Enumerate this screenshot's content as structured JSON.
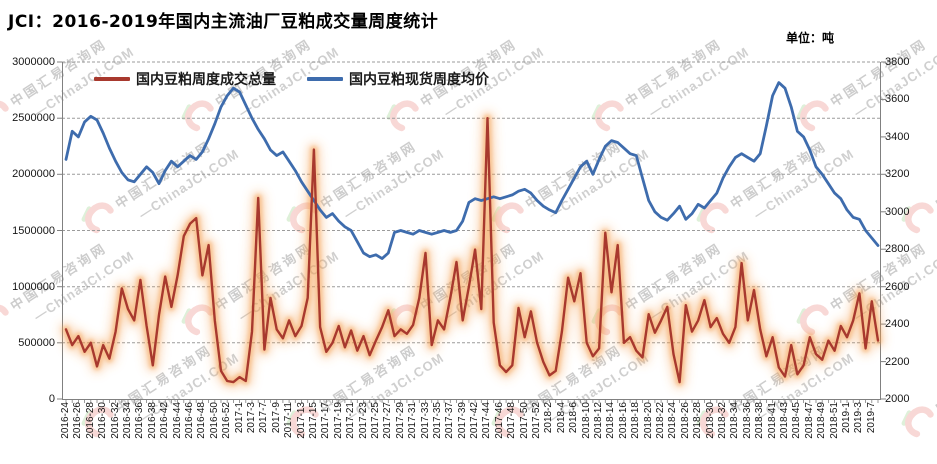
{
  "header": {
    "title": "JCI：2016-2019年国内主流油厂豆粕成交量周度统计",
    "unit": "单位：吨"
  },
  "legend": [
    {
      "label": "国内豆粕周度成交总量",
      "color": "#a8392e"
    },
    {
      "label": "国内豆粕现货周度均价",
      "color": "#3e6cad"
    }
  ],
  "watermark": {
    "line1": "中国汇易咨询网",
    "line2": "—ChinaJCI.COM",
    "logo_pink": "#f3b3ae",
    "logo_green": "#bfe3b4"
  },
  "chart_data": {
    "type": "line",
    "title": "JCI：2016-2019年国内主流油厂豆粕成交量周度统计",
    "unit_label": "单位：吨",
    "grid": "horizontal-dashed",
    "legend_position": "top-inside",
    "points_per_label": 2,
    "left_axis": {
      "min": 0,
      "max": 3000000,
      "step": 500000,
      "tick_labels": [
        "0",
        "500000",
        "1000000",
        "1500000",
        "2000000",
        "2500000",
        "3000000"
      ]
    },
    "right_axis": {
      "min": 2000,
      "max": 3800,
      "step": 200,
      "tick_labels": [
        "2000",
        "2200",
        "2400",
        "2600",
        "2800",
        "3000",
        "3200",
        "3400",
        "3600",
        "3800"
      ]
    },
    "x_tick_labels": [
      "2016-24",
      "2016-26",
      "2016-28",
      "2016-30",
      "2016-32",
      "2016-34",
      "2016-36",
      "2016-38",
      "2016-42",
      "2016-44",
      "2016-46",
      "2016-48",
      "2016-50",
      "2016-52",
      "2017-1",
      "2017-3",
      "2017-7",
      "2017-9",
      "2017-11",
      "2017-13",
      "2017-15",
      "2017-17",
      "2017-19",
      "2017-21",
      "2017-23",
      "2017-25",
      "2017-27",
      "2017-29",
      "2017-31",
      "2017-33",
      "2017-35",
      "2017-37",
      "2017-39",
      "2017-42",
      "2017-44",
      "2017-46",
      "2017-48",
      "2017-50",
      "2017-52",
      "2018-2",
      "2018-4",
      "2018-6",
      "2018-10",
      "2018-12",
      "2018-14",
      "2018-16",
      "2018-18",
      "2018-20",
      "2018-22",
      "2018-24",
      "2018-26",
      "2018-28",
      "2018-30",
      "2018-32",
      "2018-34",
      "2018-36",
      "2018-38",
      "2018-41",
      "2018-43",
      "2018-45",
      "2018-47",
      "2018-49",
      "2018-51",
      "2019-1",
      "2019-3",
      "2019-7"
    ],
    "series": [
      {
        "name": "国内豆粕周度成交总量",
        "axis": "left",
        "color": "#a8392e",
        "glow_color": "#f49a48",
        "values": [
          620000,
          480000,
          560000,
          420000,
          500000,
          290000,
          480000,
          360000,
          600000,
          985000,
          800000,
          700000,
          1060000,
          650000,
          300000,
          750000,
          1090000,
          820000,
          1100000,
          1450000,
          1560000,
          1610000,
          1100000,
          1370000,
          700000,
          250000,
          160000,
          150000,
          195000,
          160000,
          600000,
          1790000,
          440000,
          900000,
          620000,
          540000,
          700000,
          560000,
          650000,
          900000,
          2220000,
          640000,
          420000,
          500000,
          650000,
          460000,
          610000,
          430000,
          560000,
          390000,
          520000,
          640000,
          790000,
          560000,
          620000,
          580000,
          660000,
          900000,
          1300000,
          480000,
          700000,
          620000,
          900000,
          1220000,
          700000,
          1000000,
          1330000,
          800000,
          2500000,
          680000,
          300000,
          240000,
          300000,
          810000,
          550000,
          780000,
          500000,
          330000,
          210000,
          250000,
          600000,
          1080000,
          870000,
          1120000,
          500000,
          380000,
          450000,
          1480000,
          950000,
          1370000,
          500000,
          550000,
          430000,
          370000,
          755000,
          590000,
          700000,
          820000,
          400000,
          150000,
          835000,
          600000,
          700000,
          880000,
          640000,
          720000,
          580000,
          500000,
          640000,
          1210000,
          700000,
          970000,
          620000,
          380000,
          550000,
          280000,
          200000,
          480000,
          220000,
          300000,
          550000,
          400000,
          350000,
          520000,
          430000,
          650000,
          550000,
          700000,
          940000,
          450000,
          870000,
          520000
        ]
      },
      {
        "name": "国内豆粕现货周度均价",
        "axis": "right",
        "color": "#3e6cad",
        "values": [
          3280,
          3430,
          3400,
          3480,
          3510,
          3490,
          3420,
          3340,
          3270,
          3210,
          3170,
          3160,
          3200,
          3240,
          3210,
          3150,
          3220,
          3270,
          3240,
          3270,
          3300,
          3280,
          3320,
          3390,
          3470,
          3560,
          3620,
          3660,
          3640,
          3570,
          3500,
          3440,
          3390,
          3330,
          3300,
          3320,
          3270,
          3220,
          3160,
          3110,
          3060,
          3010,
          2970,
          2990,
          2950,
          2920,
          2900,
          2840,
          2780,
          2760,
          2770,
          2750,
          2780,
          2890,
          2900,
          2890,
          2880,
          2900,
          2890,
          2880,
          2890,
          2900,
          2890,
          2900,
          2950,
          3050,
          3070,
          3060,
          3070,
          3080,
          3070,
          3080,
          3090,
          3110,
          3120,
          3100,
          3060,
          3030,
          3010,
          2995,
          3060,
          3120,
          3180,
          3240,
          3270,
          3200,
          3280,
          3350,
          3380,
          3370,
          3340,
          3310,
          3300,
          3180,
          3060,
          3000,
          2970,
          2955,
          2990,
          3030,
          2960,
          2990,
          3040,
          3020,
          3060,
          3100,
          3180,
          3240,
          3290,
          3310,
          3290,
          3270,
          3310,
          3460,
          3620,
          3690,
          3660,
          3560,
          3430,
          3400,
          3330,
          3240,
          3200,
          3150,
          3100,
          3070,
          3010,
          2970,
          2960,
          2900,
          2860,
          2820
        ]
      }
    ]
  }
}
